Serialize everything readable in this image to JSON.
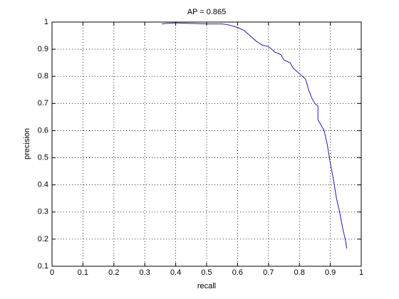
{
  "chart_data": {
    "type": "line",
    "title": "AP = 0.865",
    "xlabel": "recall",
    "ylabel": "precision",
    "x": [
      0.355,
      0.37,
      0.4,
      0.45,
      0.5,
      0.55,
      0.57,
      0.6,
      0.62,
      0.64,
      0.66,
      0.68,
      0.7,
      0.72,
      0.74,
      0.75,
      0.77,
      0.78,
      0.8,
      0.82,
      0.83,
      0.84,
      0.85,
      0.86,
      0.86,
      0.87,
      0.88,
      0.89,
      0.9,
      0.91,
      0.92,
      0.93,
      0.94,
      0.95,
      0.953
    ],
    "values": [
      0.993,
      0.995,
      0.997,
      0.995,
      0.993,
      0.993,
      0.99,
      0.98,
      0.97,
      0.95,
      0.93,
      0.915,
      0.91,
      0.89,
      0.88,
      0.86,
      0.85,
      0.83,
      0.81,
      0.79,
      0.75,
      0.72,
      0.7,
      0.69,
      0.64,
      0.62,
      0.6,
      0.55,
      0.48,
      0.42,
      0.35,
      0.3,
      0.24,
      0.19,
      0.165
    ],
    "color": "#1f1fa8",
    "xlim": [
      0,
      1
    ],
    "xticks": [
      0,
      0.1,
      0.2,
      0.3,
      0.4,
      0.5,
      0.6,
      0.7,
      0.8,
      0.9,
      1
    ],
    "ylim": [
      0.1,
      1
    ],
    "yticks": [
      0.1,
      0.2,
      0.3,
      0.4,
      0.5,
      0.6,
      0.7,
      0.8,
      0.9,
      1
    ],
    "grid": true
  }
}
